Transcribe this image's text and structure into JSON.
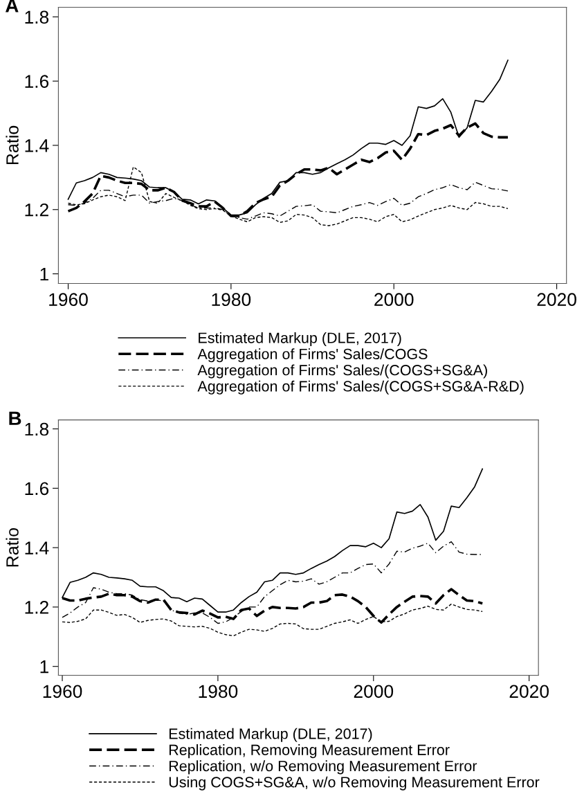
{
  "chart_data": [
    {
      "type": "line",
      "annotations": [
        "A"
      ],
      "ylabel": "Ratio",
      "xlim": [
        1958.8,
        2021.2
      ],
      "xticks": [
        1960,
        1980,
        2000,
        2020
      ],
      "ylim": [
        0.97,
        1.83
      ],
      "yticks": [
        1,
        1.2,
        1.4,
        1.6,
        1.8
      ],
      "grid": false,
      "legend": "bottom",
      "marker": "none",
      "x": [
        1960,
        1961,
        1962,
        1963,
        1964,
        1965,
        1966,
        1967,
        1968,
        1969,
        1970,
        1971,
        1972,
        1973,
        1974,
        1975,
        1976,
        1977,
        1978,
        1979,
        1980,
        1981,
        1982,
        1983,
        1984,
        1985,
        1986,
        1987,
        1988,
        1989,
        1990,
        1991,
        1992,
        1993,
        1994,
        1995,
        1996,
        1997,
        1998,
        1999,
        2000,
        2001,
        2002,
        2003,
        2004,
        2005,
        2006,
        2007,
        2008,
        2009,
        2010,
        2011,
        2012,
        2013,
        2014
      ],
      "series": [
        {
          "name": "Estimated Markup (DLE, 2017)",
          "color": "#000000",
          "line_style": "solid",
          "values": [
            1.232,
            1.283,
            1.29,
            1.3,
            1.315,
            1.31,
            1.3,
            1.298,
            1.295,
            1.29,
            1.27,
            1.268,
            1.268,
            1.255,
            1.232,
            1.23,
            1.218,
            1.23,
            1.227,
            1.205,
            1.183,
            1.183,
            1.19,
            1.215,
            1.235,
            1.25,
            1.285,
            1.29,
            1.315,
            1.315,
            1.31,
            1.315,
            1.33,
            1.343,
            1.355,
            1.37,
            1.39,
            1.407,
            1.407,
            1.403,
            1.415,
            1.4,
            1.43,
            1.52,
            1.515,
            1.523,
            1.545,
            1.503,
            1.425,
            1.455,
            1.54,
            1.535,
            1.568,
            1.605,
            1.665
          ]
        },
        {
          "name": "Aggregation of Firms' Sales/COGS",
          "color": "#000000",
          "line_style": "dashed",
          "values": [
            1.195,
            1.205,
            1.225,
            1.25,
            1.305,
            1.3,
            1.29,
            1.283,
            1.283,
            1.28,
            1.26,
            1.26,
            1.268,
            1.255,
            1.228,
            1.22,
            1.21,
            1.21,
            1.225,
            1.205,
            1.18,
            1.18,
            1.195,
            1.22,
            1.232,
            1.24,
            1.275,
            1.29,
            1.31,
            1.325,
            1.325,
            1.322,
            1.33,
            1.31,
            1.325,
            1.34,
            1.355,
            1.348,
            1.36,
            1.378,
            1.383,
            1.355,
            1.39,
            1.435,
            1.432,
            1.445,
            1.452,
            1.463,
            1.43,
            1.455,
            1.468,
            1.438,
            1.427,
            1.425,
            1.425
          ]
        },
        {
          "name": "Aggregation of Firms' Sales/(COGS+SG&A)",
          "color": "#000000",
          "line_style": "dashdot",
          "values": [
            1.215,
            1.213,
            1.22,
            1.235,
            1.26,
            1.26,
            1.25,
            1.24,
            1.245,
            1.245,
            1.22,
            1.225,
            1.228,
            1.235,
            1.228,
            1.215,
            1.205,
            1.205,
            1.205,
            1.2,
            1.18,
            1.175,
            1.17,
            1.18,
            1.19,
            1.187,
            1.18,
            1.195,
            1.21,
            1.212,
            1.215,
            1.195,
            1.193,
            1.19,
            1.2,
            1.21,
            1.215,
            1.222,
            1.213,
            1.225,
            1.235,
            1.213,
            1.22,
            1.24,
            1.25,
            1.262,
            1.268,
            1.278,
            1.268,
            1.262,
            1.285,
            1.275,
            1.265,
            1.263,
            1.258
          ]
        },
        {
          "name": "Aggregation of Firms' Sales/(COGS+SG&A-R&D)",
          "color": "#000000",
          "line_style": "dotted",
          "values": [
            1.22,
            1.215,
            1.218,
            1.23,
            1.24,
            1.245,
            1.24,
            1.228,
            1.333,
            1.315,
            1.225,
            1.22,
            1.25,
            1.238,
            1.228,
            1.213,
            1.203,
            1.2,
            1.203,
            1.198,
            1.18,
            1.17,
            1.162,
            1.175,
            1.178,
            1.175,
            1.16,
            1.165,
            1.185,
            1.183,
            1.175,
            1.153,
            1.15,
            1.155,
            1.165,
            1.175,
            1.175,
            1.17,
            1.162,
            1.178,
            1.185,
            1.162,
            1.168,
            1.18,
            1.19,
            1.2,
            1.205,
            1.213,
            1.205,
            1.2,
            1.222,
            1.218,
            1.21,
            1.21,
            1.203
          ]
        }
      ]
    },
    {
      "type": "line",
      "annotations": [
        "B"
      ],
      "ylabel": "Ratio",
      "xlim": [
        1959.5,
        2021.2
      ],
      "xticks": [
        1960,
        1980,
        2000,
        2020
      ],
      "ylim": [
        0.97,
        1.83
      ],
      "yticks": [
        1,
        1.2,
        1.4,
        1.6,
        1.8
      ],
      "grid": false,
      "legend": "bottom",
      "marker": "none",
      "x": [
        1960,
        1961,
        1962,
        1963,
        1964,
        1965,
        1966,
        1967,
        1968,
        1969,
        1970,
        1971,
        1972,
        1973,
        1974,
        1975,
        1976,
        1977,
        1978,
        1979,
        1980,
        1981,
        1982,
        1983,
        1984,
        1985,
        1986,
        1987,
        1988,
        1989,
        1990,
        1991,
        1992,
        1993,
        1994,
        1995,
        1996,
        1997,
        1998,
        1999,
        2000,
        2001,
        2002,
        2003,
        2004,
        2005,
        2006,
        2007,
        2008,
        2009,
        2010,
        2011,
        2012,
        2013,
        2014
      ],
      "series": [
        {
          "name": "Estimated Markup (DLE, 2017)",
          "color": "#000000",
          "line_style": "solid",
          "values": [
            1.232,
            1.283,
            1.29,
            1.3,
            1.315,
            1.31,
            1.3,
            1.298,
            1.295,
            1.29,
            1.27,
            1.268,
            1.268,
            1.255,
            1.232,
            1.23,
            1.218,
            1.23,
            1.227,
            1.205,
            1.183,
            1.183,
            1.19,
            1.215,
            1.235,
            1.25,
            1.285,
            1.29,
            1.315,
            1.315,
            1.31,
            1.315,
            1.33,
            1.343,
            1.355,
            1.37,
            1.39,
            1.407,
            1.407,
            1.403,
            1.415,
            1.4,
            1.43,
            1.52,
            1.515,
            1.523,
            1.545,
            1.503,
            1.425,
            1.455,
            1.54,
            1.535,
            1.568,
            1.605,
            1.665
          ]
        },
        {
          "name": "Replication, Removing Measurement Error",
          "color": "#000000",
          "line_style": "dashed",
          "values": [
            1.23,
            1.222,
            1.222,
            1.228,
            1.232,
            1.235,
            1.245,
            1.24,
            1.24,
            1.235,
            1.22,
            1.215,
            1.225,
            1.225,
            1.19,
            1.182,
            1.18,
            1.175,
            1.188,
            1.178,
            1.165,
            1.167,
            1.16,
            1.19,
            1.195,
            1.17,
            1.188,
            1.2,
            1.197,
            1.197,
            1.195,
            1.2,
            1.215,
            1.215,
            1.22,
            1.24,
            1.242,
            1.235,
            1.22,
            1.2,
            1.17,
            1.148,
            1.175,
            1.2,
            1.218,
            1.235,
            1.237,
            1.235,
            1.212,
            1.24,
            1.26,
            1.24,
            1.222,
            1.22,
            1.212
          ]
        },
        {
          "name": "Replication, w/o Removing Measurement Error",
          "color": "#000000",
          "line_style": "dashdot",
          "values": [
            1.165,
            1.18,
            1.2,
            1.215,
            1.265,
            1.26,
            1.25,
            1.245,
            1.245,
            1.24,
            1.225,
            1.22,
            1.225,
            1.22,
            1.19,
            1.18,
            1.175,
            1.18,
            1.18,
            1.165,
            1.145,
            1.15,
            1.165,
            1.185,
            1.2,
            1.2,
            1.235,
            1.255,
            1.275,
            1.29,
            1.285,
            1.287,
            1.295,
            1.277,
            1.285,
            1.3,
            1.315,
            1.315,
            1.33,
            1.343,
            1.345,
            1.315,
            1.345,
            1.388,
            1.385,
            1.398,
            1.405,
            1.415,
            1.383,
            1.405,
            1.42,
            1.385,
            1.378,
            1.377,
            1.377
          ]
        },
        {
          "name": "Using COGS+SG&A, w/o Removing Measurement Error",
          "color": "#000000",
          "line_style": "dotted",
          "values": [
            1.15,
            1.148,
            1.152,
            1.16,
            1.19,
            1.19,
            1.182,
            1.172,
            1.175,
            1.165,
            1.148,
            1.155,
            1.158,
            1.16,
            1.153,
            1.137,
            1.135,
            1.133,
            1.135,
            1.128,
            1.115,
            1.107,
            1.103,
            1.115,
            1.125,
            1.123,
            1.118,
            1.128,
            1.143,
            1.145,
            1.143,
            1.127,
            1.125,
            1.125,
            1.135,
            1.145,
            1.15,
            1.157,
            1.145,
            1.158,
            1.168,
            1.15,
            1.152,
            1.168,
            1.177,
            1.19,
            1.195,
            1.203,
            1.192,
            1.19,
            1.21,
            1.2,
            1.192,
            1.19,
            1.185
          ]
        }
      ]
    }
  ]
}
